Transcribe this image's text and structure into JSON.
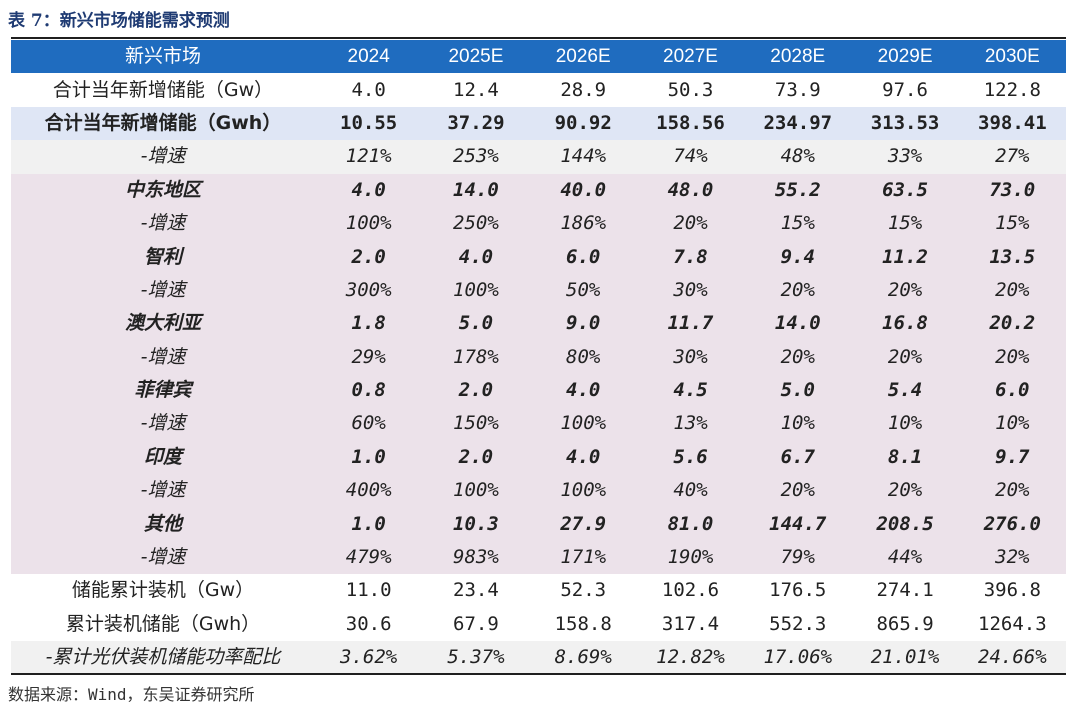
{
  "title": "表 7：新兴市场储能需求预测",
  "header": [
    "新兴市场",
    "2024",
    "2025E",
    "2026E",
    "2027E",
    "2028E",
    "2029E",
    "2030E"
  ],
  "rows": [
    {
      "type": "plain",
      "label": "合计当年新增储能（Gw）",
      "values": [
        "4.0",
        "12.4",
        "28.9",
        "50.3",
        "73.9",
        "97.6",
        "122.8"
      ]
    },
    {
      "type": "total",
      "label": "合计当年新增储能（Gwh）",
      "values": [
        "10.55",
        "37.29",
        "90.92",
        "158.56",
        "234.97",
        "313.53",
        "398.41"
      ]
    },
    {
      "type": "grey",
      "label": "-增速",
      "values": [
        "121%",
        "253%",
        "144%",
        "74%",
        "48%",
        "33%",
        "27%"
      ]
    },
    {
      "type": "region",
      "label": "中东地区",
      "values": [
        "4.0",
        "14.0",
        "40.0",
        "48.0",
        "55.2",
        "63.5",
        "73.0"
      ]
    },
    {
      "type": "growth",
      "label": "-增速",
      "values": [
        "100%",
        "250%",
        "186%",
        "20%",
        "15%",
        "15%",
        "15%"
      ]
    },
    {
      "type": "region",
      "label": "智利",
      "values": [
        "2.0",
        "4.0",
        "6.0",
        "7.8",
        "9.4",
        "11.2",
        "13.5"
      ]
    },
    {
      "type": "growth",
      "label": "-增速",
      "values": [
        "300%",
        "100%",
        "50%",
        "30%",
        "20%",
        "20%",
        "20%"
      ]
    },
    {
      "type": "region",
      "label": "澳大利亚",
      "values": [
        "1.8",
        "5.0",
        "9.0",
        "11.7",
        "14.0",
        "16.8",
        "20.2"
      ]
    },
    {
      "type": "growth",
      "label": "-增速",
      "values": [
        "29%",
        "178%",
        "80%",
        "30%",
        "20%",
        "20%",
        "20%"
      ]
    },
    {
      "type": "region",
      "label": "菲律宾",
      "values": [
        "0.8",
        "2.0",
        "4.0",
        "4.5",
        "5.0",
        "5.4",
        "6.0"
      ]
    },
    {
      "type": "growth",
      "label": "-增速",
      "values": [
        "60%",
        "150%",
        "100%",
        "13%",
        "10%",
        "10%",
        "10%"
      ]
    },
    {
      "type": "region",
      "label": "印度",
      "values": [
        "1.0",
        "2.0",
        "4.0",
        "5.6",
        "6.7",
        "8.1",
        "9.7"
      ]
    },
    {
      "type": "growth",
      "label": "-增速",
      "values": [
        "400%",
        "100%",
        "100%",
        "40%",
        "20%",
        "20%",
        "20%"
      ]
    },
    {
      "type": "region",
      "label": "其他",
      "values": [
        "1.0",
        "10.3",
        "27.9",
        "81.0",
        "144.7",
        "208.5",
        "276.0"
      ]
    },
    {
      "type": "growth",
      "label": "-增速",
      "values": [
        "479%",
        "983%",
        "171%",
        "190%",
        "79%",
        "44%",
        "32%"
      ]
    },
    {
      "type": "plain",
      "label": "储能累计装机（Gw）",
      "values": [
        "11.0",
        "23.4",
        "52.3",
        "102.6",
        "176.5",
        "274.1",
        "396.8"
      ]
    },
    {
      "type": "plain",
      "label": "累计装机储能（Gwh）",
      "values": [
        "30.6",
        "67.9",
        "158.8",
        "317.4",
        "552.3",
        "865.9",
        "1264.3"
      ]
    },
    {
      "type": "ratio",
      "label": "-累计光伏装机储能功率配比",
      "values": [
        "3.62%",
        "5.37%",
        "8.69%",
        "12.82%",
        "17.06%",
        "21.01%",
        "24.66%"
      ]
    }
  ],
  "source": "数据来源：Wind，东吴证券研究所"
}
